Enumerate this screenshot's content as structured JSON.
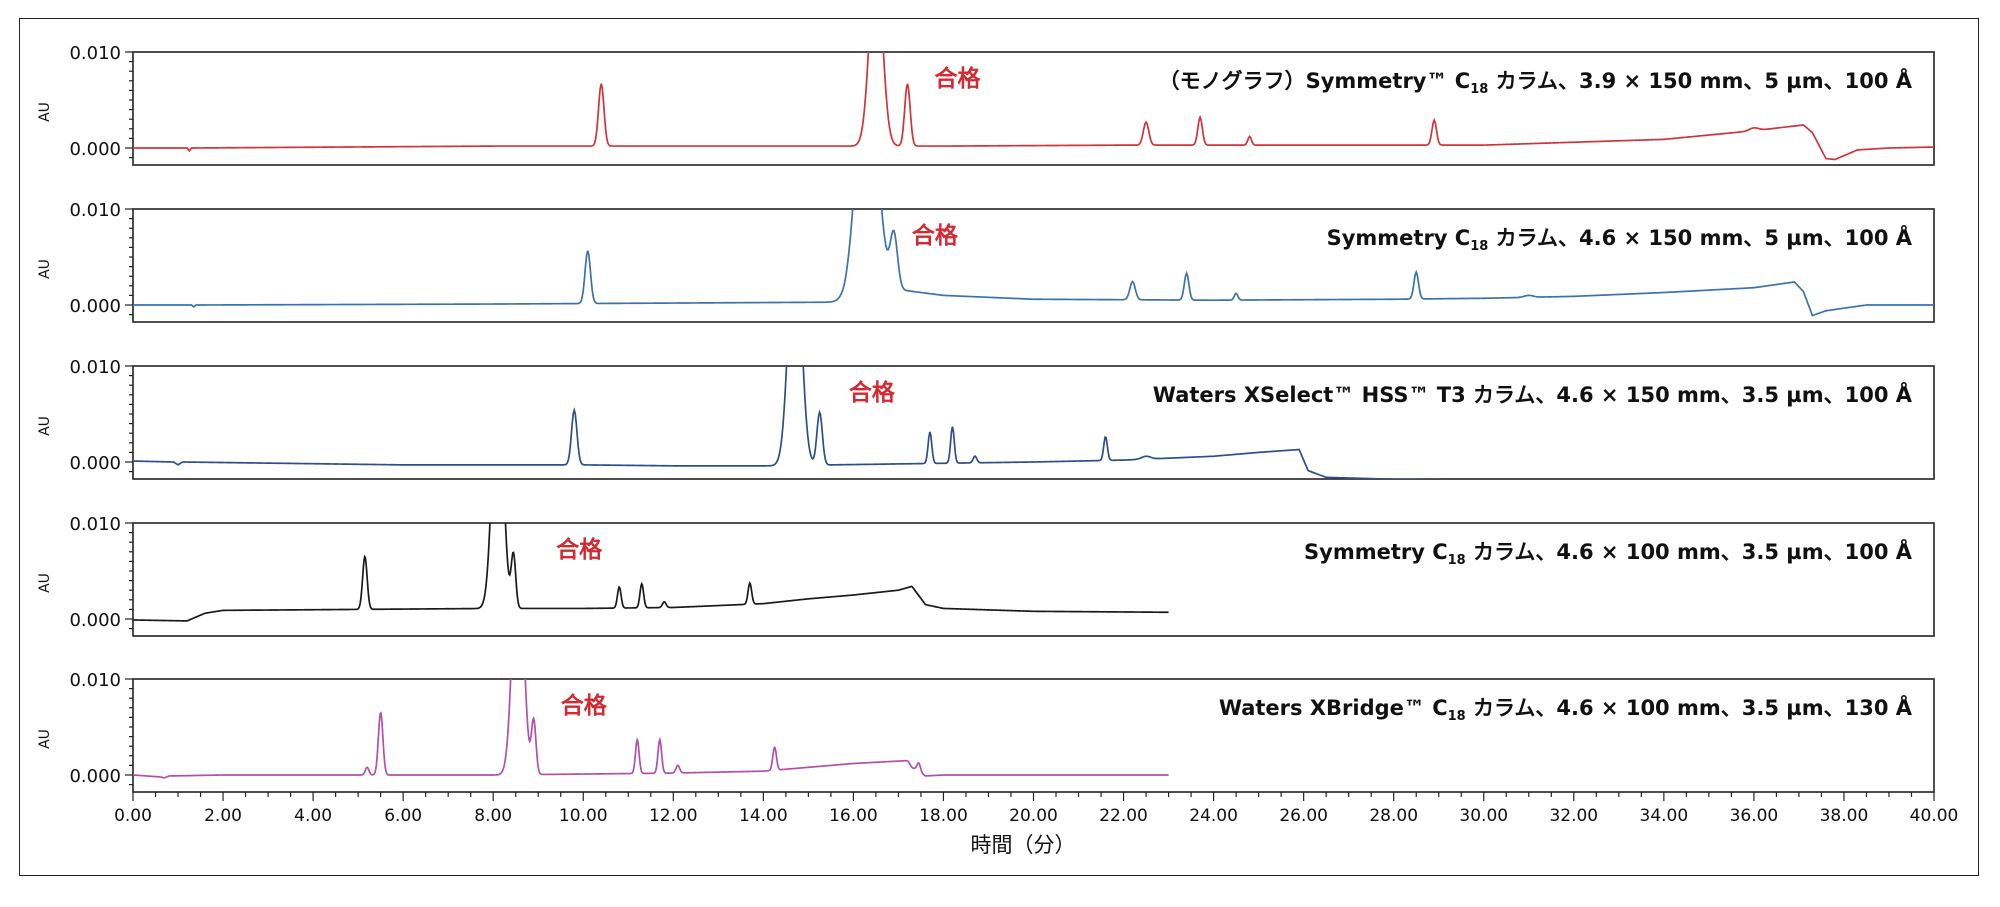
{
  "chart_data": {
    "type": "line",
    "xlabel": "時間（分）",
    "xlim": [
      0,
      40
    ],
    "x_ticks": [
      "0.00",
      "2.00",
      "4.00",
      "6.00",
      "8.00",
      "10.00",
      "12.00",
      "14.00",
      "16.00",
      "18.00",
      "20.00",
      "22.00",
      "24.00",
      "26.00",
      "28.00",
      "30.00",
      "32.00",
      "34.00",
      "36.00",
      "38.00",
      "40.00"
    ],
    "ylabel": "AU",
    "ylim": [
      -0.002,
      0.01
    ],
    "y_ticks": [
      "0.000",
      "0.010"
    ],
    "pass_label": "合格",
    "panels": [
      {
        "name": "（モノグラフ）Symmetry™ C18 カラム、3.9 × 150 mm、5 µm、100 Å",
        "title_pre": "（モノグラフ）Symmetry™ C",
        "title_sub": "18",
        "title_post": " カラム、3.9 × 150 mm、5 µm、100 Å",
        "color": "#d0343a",
        "x_end": 40,
        "pass_label_x": 17.8,
        "baseline": [
          [
            0,
            0
          ],
          [
            1.2,
            0
          ],
          [
            1.25,
            -0.0003
          ],
          [
            1.3,
            0
          ],
          [
            8,
            0.0002
          ],
          [
            16,
            0.0002
          ],
          [
            18,
            0.0002
          ],
          [
            22,
            0.0003
          ],
          [
            26,
            0.0003
          ],
          [
            30,
            0.0003
          ],
          [
            32,
            0.0006
          ],
          [
            34,
            0.0009
          ],
          [
            36,
            0.0018
          ],
          [
            37.1,
            0.0024
          ],
          [
            37.3,
            0.0016
          ],
          [
            37.6,
            -0.0011
          ],
          [
            37.8,
            -0.0012
          ],
          [
            38.3,
            -0.0002
          ],
          [
            39,
            0
          ],
          [
            40,
            0.0001
          ]
        ],
        "peaks": [
          [
            10.4,
            0.0065,
            0.06
          ],
          [
            16.5,
            0.02,
            0.14
          ],
          [
            17.2,
            0.0065,
            0.06
          ],
          [
            22.5,
            0.0024,
            0.06
          ],
          [
            23.7,
            0.0029,
            0.05
          ],
          [
            24.8,
            0.0009,
            0.04
          ],
          [
            28.9,
            0.0026,
            0.05
          ],
          [
            36,
            0.0003,
            0.1
          ]
        ]
      },
      {
        "name": "Symmetry C18 カラム、4.6 × 150 mm、5 µm、100 Å",
        "title_pre": "Symmetry C",
        "title_sub": "18",
        "title_post": " カラム、4.6 × 150 mm、5 µm、100 Å",
        "color": "#3a73ac",
        "x_end": 40,
        "pass_label_x": 17.3,
        "baseline": [
          [
            0,
            0
          ],
          [
            1.3,
            0
          ],
          [
            1.35,
            -0.0002
          ],
          [
            1.4,
            0
          ],
          [
            8,
            0.0001
          ],
          [
            15.8,
            0.0003
          ],
          [
            16.2,
            0.002
          ],
          [
            17,
            0.0016
          ],
          [
            18,
            0.001
          ],
          [
            20,
            0.0006
          ],
          [
            24,
            0.0005
          ],
          [
            28,
            0.0006
          ],
          [
            30,
            0.0007
          ],
          [
            32,
            0.0009
          ],
          [
            34,
            0.0013
          ],
          [
            36,
            0.0018
          ],
          [
            36.9,
            0.0024
          ],
          [
            37.1,
            0.0014
          ],
          [
            37.3,
            -0.0011
          ],
          [
            37.6,
            -0.0006
          ],
          [
            38.5,
            0
          ],
          [
            40,
            0
          ]
        ],
        "peaks": [
          [
            10.1,
            0.0055,
            0.06
          ],
          [
            16.3,
            0.025,
            0.22
          ],
          [
            16.9,
            0.0055,
            0.08
          ],
          [
            22.2,
            0.0019,
            0.06
          ],
          [
            23.4,
            0.0028,
            0.05
          ],
          [
            24.5,
            0.0007,
            0.04
          ],
          [
            28.5,
            0.0028,
            0.05
          ],
          [
            31,
            0.0002,
            0.1
          ]
        ]
      },
      {
        "name": "Waters XSelect™ HSS™ T3 カラム、4.6 × 150 mm、3.5 µm、100 Å",
        "title_pre": "Waters XSelect™ HSS™ T3 カラム、4.6 × 150 mm、3.5 µm、100 Å",
        "title_sub": "",
        "title_post": "",
        "color": "#2d4e8a",
        "x_end": 35,
        "pass_label_x": 15.9,
        "baseline": [
          [
            0,
            0.0001
          ],
          [
            0.9,
            0
          ],
          [
            1.0,
            -0.0003
          ],
          [
            1.1,
            0
          ],
          [
            6,
            -0.0003
          ],
          [
            9.5,
            -0.0003
          ],
          [
            10,
            -0.0003
          ],
          [
            12,
            -0.0004
          ],
          [
            14.4,
            -0.0004
          ],
          [
            15.5,
            -0.0003
          ],
          [
            17,
            -0.0002
          ],
          [
            20,
            0
          ],
          [
            22,
            0.0002
          ],
          [
            24,
            0.0006
          ],
          [
            25,
            0.001
          ],
          [
            25.9,
            0.0013
          ],
          [
            26.1,
            -0.0009
          ],
          [
            26.5,
            -0.0016
          ],
          [
            28,
            -0.0018
          ],
          [
            30,
            -0.0019
          ],
          [
            32,
            -0.002
          ],
          [
            35,
            -0.002
          ]
        ],
        "peaks": [
          [
            9.8,
            0.0057,
            0.06
          ],
          [
            14.7,
            0.025,
            0.14
          ],
          [
            15.25,
            0.0055,
            0.06
          ],
          [
            17.7,
            0.0033,
            0.04
          ],
          [
            18.2,
            0.0038,
            0.04
          ],
          [
            18.7,
            0.0007,
            0.04
          ],
          [
            21.6,
            0.0025,
            0.04
          ],
          [
            22.5,
            0.0003,
            0.1
          ]
        ]
      },
      {
        "name": "Symmetry C18 カラム、4.6 × 100 mm、3.5 µm、100 Å",
        "title_pre": "Symmetry C",
        "title_sub": "18",
        "title_post": " カラム、4.6 × 100 mm、3.5 µm、100 Å",
        "color": "#1a1a1a",
        "x_end": 23,
        "pass_label_x": 9.4,
        "baseline": [
          [
            0,
            -0.0001
          ],
          [
            1.2,
            -0.0002
          ],
          [
            1.6,
            0.0006
          ],
          [
            2,
            0.0009
          ],
          [
            5,
            0.001
          ],
          [
            8,
            0.0011
          ],
          [
            10,
            0.0011
          ],
          [
            12,
            0.0012
          ],
          [
            14,
            0.0016
          ],
          [
            15,
            0.0021
          ],
          [
            16,
            0.0025
          ],
          [
            17,
            0.003
          ],
          [
            17.3,
            0.0034
          ],
          [
            17.6,
            0.0015
          ],
          [
            18,
            0.0011
          ],
          [
            20,
            0.0008
          ],
          [
            23,
            0.0007
          ]
        ],
        "peaks": [
          [
            5.15,
            0.0055,
            0.05
          ],
          [
            8.1,
            0.025,
            0.12
          ],
          [
            8.45,
            0.0055,
            0.05
          ],
          [
            10.8,
            0.0022,
            0.04
          ],
          [
            11.3,
            0.0025,
            0.04
          ],
          [
            11.8,
            0.0006,
            0.04
          ],
          [
            13.7,
            0.0022,
            0.04
          ]
        ]
      },
      {
        "name": "Waters XBridge™ C18 カラム、4.6 × 100 mm、3.5 µm、130 Å",
        "title_pre": "Waters XBridge™ C",
        "title_sub": "18",
        "title_post": " カラム、4.6 × 100 mm、3.5 µm、130 Å",
        "color": "#b44fa9",
        "x_end": 23,
        "pass_label_x": 9.5,
        "baseline": [
          [
            0,
            0
          ],
          [
            0.6,
            -0.0002
          ],
          [
            0.7,
            -0.0003
          ],
          [
            0.8,
            -0.0001
          ],
          [
            2,
            0
          ],
          [
            5,
            0
          ],
          [
            8,
            0
          ],
          [
            10,
            0.0001
          ],
          [
            12,
            0.0002
          ],
          [
            14,
            0.0004
          ],
          [
            16,
            0.0012
          ],
          [
            17.2,
            0.0015
          ],
          [
            17.4,
            0.0005
          ],
          [
            17.6,
            -0.0001
          ],
          [
            18,
            0
          ],
          [
            20,
            0
          ],
          [
            23,
            0
          ]
        ],
        "peaks": [
          [
            5.2,
            0.0008,
            0.04
          ],
          [
            5.5,
            0.0065,
            0.05
          ],
          [
            8.55,
            0.025,
            0.12
          ],
          [
            8.9,
            0.0055,
            0.05
          ],
          [
            11.2,
            0.0035,
            0.04
          ],
          [
            11.7,
            0.0035,
            0.04
          ],
          [
            12.1,
            0.0008,
            0.04
          ],
          [
            14.25,
            0.0024,
            0.04
          ],
          [
            17.3,
            -0.0002,
            0.04
          ],
          [
            17.45,
            0.0009,
            0.04
          ]
        ]
      }
    ]
  }
}
